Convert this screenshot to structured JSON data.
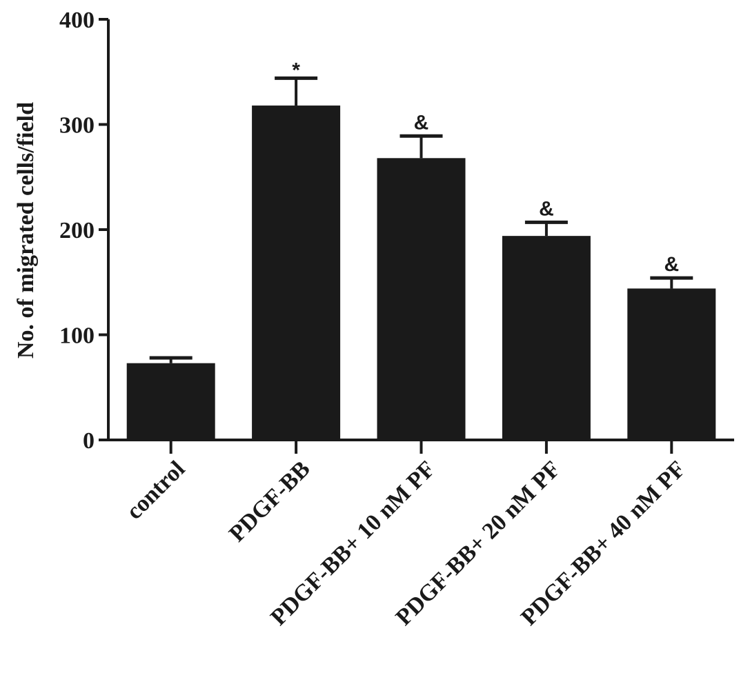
{
  "chart_data": {
    "type": "bar",
    "title": "",
    "xlabel": "",
    "ylabel": "No. of migrated cells/field",
    "ylim": [
      0,
      400
    ],
    "yticks": [
      0,
      100,
      200,
      300,
      400
    ],
    "categories": [
      "control",
      "PDGF-BB",
      "PDGF-BB+ 10 nM PF",
      "PDGF-BB+ 20 nM PF",
      "PDGF-BB+ 40 nM PF"
    ],
    "values": [
      73,
      318,
      268,
      194,
      144
    ],
    "error": [
      5,
      26,
      21,
      13,
      10
    ],
    "annotations": [
      "",
      "*",
      "&",
      "&",
      "&"
    ],
    "grid": false,
    "legend": "none",
    "colors": {
      "bar": "#1a1a1a",
      "axis": "#1a1a1a",
      "text": "#1a1a1a",
      "background": "#ffffff"
    }
  }
}
